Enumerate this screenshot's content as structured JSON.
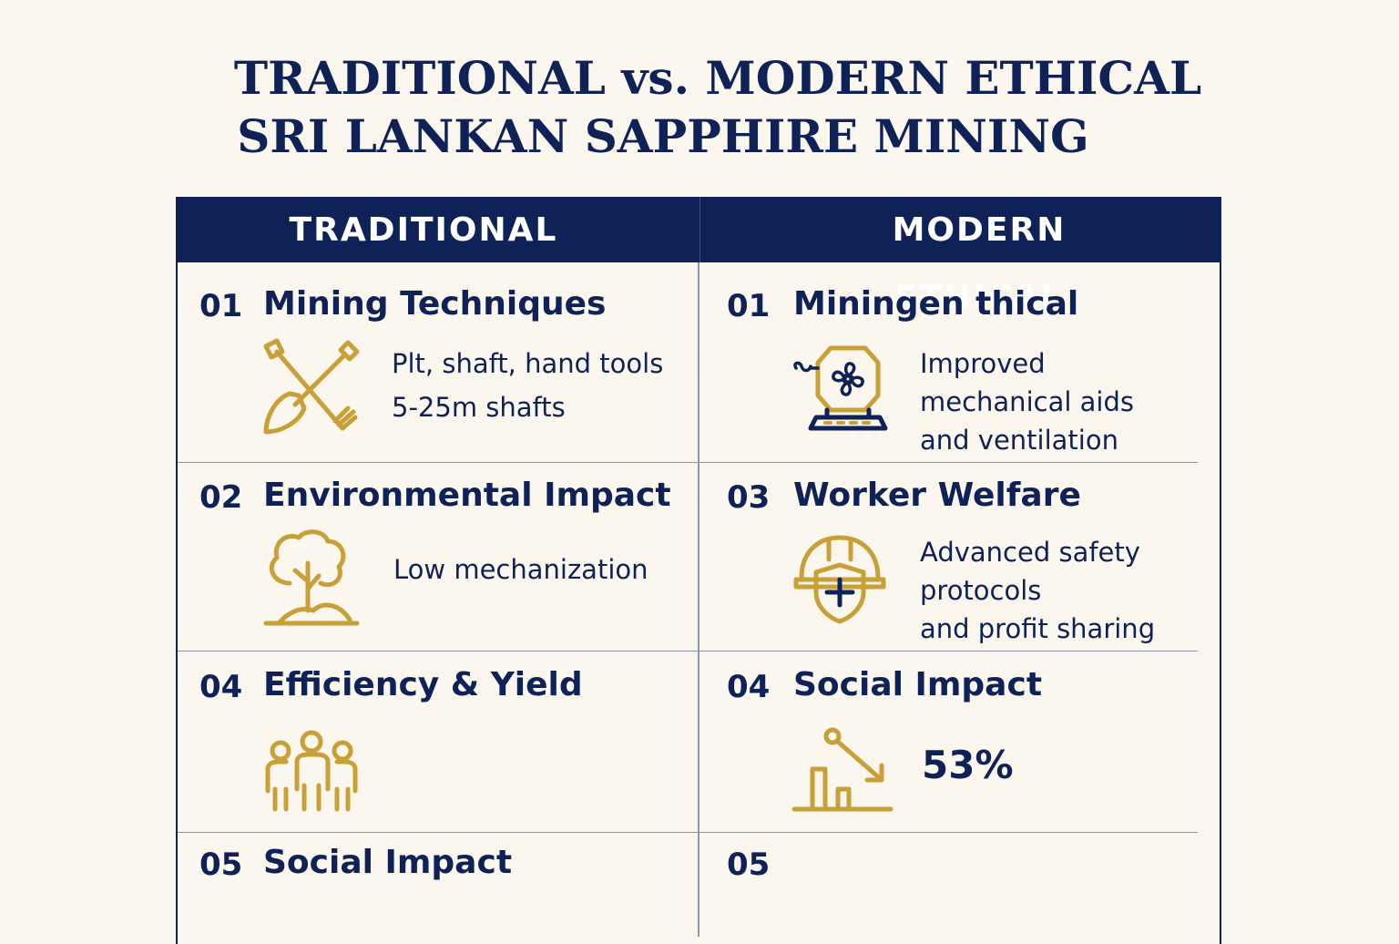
{
  "title": {
    "line1": "TRADITIONAL vs. MODERN ETHICAL",
    "line2": "SRI LANKAN SAPPHIRE MINING"
  },
  "columns": {
    "left": "TRADITIONAL",
    "right": "MODERN ETHICAL"
  },
  "left": [
    {
      "num": "01",
      "title": "Mining Techniques",
      "icon": "shovel-pickaxe-icon",
      "lines": [
        "Plt, shaft, hand tools",
        "5-25m shafts"
      ]
    },
    {
      "num": "02",
      "title": "Environmental Impact",
      "icon": "tree-icon",
      "lines": [
        "Low mechanization"
      ]
    },
    {
      "num": "04",
      "title": "Efficiency & Yield",
      "icon": "people-group-icon",
      "lines": []
    },
    {
      "num": "05",
      "title": "Social Impact",
      "icon": "",
      "lines": []
    }
  ],
  "right": [
    {
      "num": "01",
      "title": "Miningen thical",
      "icon": "ventilation-machine-icon",
      "lines": [
        "Improved",
        "mechanical aids",
        "and ventilation"
      ]
    },
    {
      "num": "03",
      "title": "Worker Welfare",
      "icon": "safety-helmet-shield-icon",
      "lines": [
        "Advanced safety",
        "protocols",
        "and profit sharing"
      ]
    },
    {
      "num": "04",
      "title": "Social Impact",
      "icon": "declining-chart-icon",
      "stat": "53%"
    },
    {
      "num": "05",
      "title": "",
      "icon": ""
    }
  ],
  "colors": {
    "navy": "#0f2257",
    "gold": "#c9a037",
    "background": "#fbf7ee"
  }
}
